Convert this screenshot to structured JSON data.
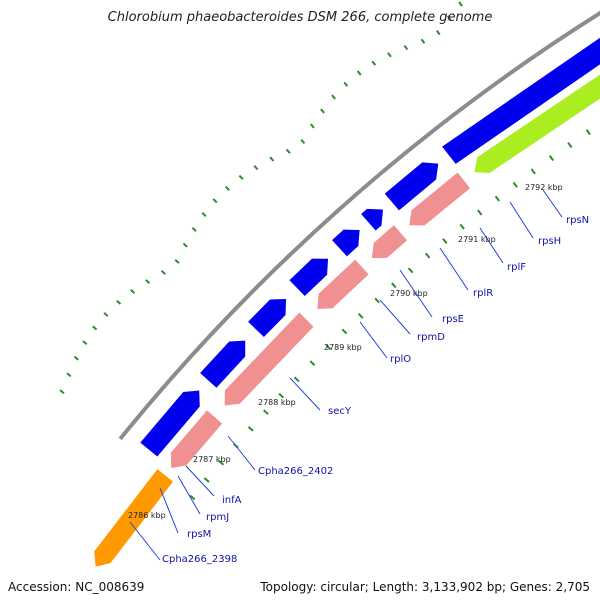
{
  "title": "Chlorobium phaeobacteroides DSM 266, complete genome",
  "footer": {
    "accession": "Accession: NC_008639",
    "topology": "Topology: circular; Length: 3,133,902 bp; Genes: 2,705"
  },
  "colors": {
    "backbone": "#8c8c8c",
    "forward_gene": "#0000ee",
    "reverse_gene": "#f09090",
    "highlight_gene": "#aaee22",
    "rna_gene": "#ff9900",
    "gc_tick": "#2e8b2e",
    "label_line": "#2244dd"
  },
  "scale_ticks": [
    {
      "label": "2786 kbp"
    },
    {
      "label": "2787 kbp"
    },
    {
      "label": "2788 kbp"
    },
    {
      "label": "2789 kbp"
    },
    {
      "label": "2790 kbp"
    },
    {
      "label": "2791 kbp"
    },
    {
      "label": "2792 kbp"
    }
  ],
  "gene_labels": [
    {
      "label": "Cpha266_2398"
    },
    {
      "label": "rpsM"
    },
    {
      "label": "rpmJ"
    },
    {
      "label": "infA"
    },
    {
      "label": "Cpha266_2402"
    },
    {
      "label": "secY"
    },
    {
      "label": "rplO"
    },
    {
      "label": "rpmD"
    },
    {
      "label": "rpsE"
    },
    {
      "label": "rplR"
    },
    {
      "label": "rplF"
    },
    {
      "label": "rpsH"
    },
    {
      "label": "rpsN"
    }
  ]
}
